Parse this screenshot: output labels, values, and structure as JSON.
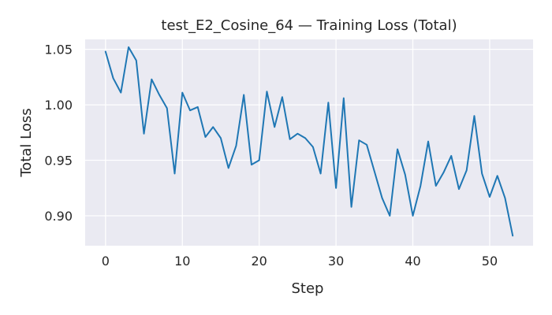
{
  "chart_data": {
    "type": "line",
    "title": "test_E2_Cosine_64 — Training Loss (Total)",
    "xlabel": "Step",
    "ylabel": "Total Loss",
    "xlim": [
      -2.65,
      55.65
    ],
    "ylim": [
      0.873,
      1.059
    ],
    "grid": true,
    "xticks": [
      0,
      10,
      20,
      30,
      40,
      50
    ],
    "yticks": [
      0.9,
      0.95,
      1.0,
      1.05
    ],
    "ytick_labels": [
      "0.90",
      "0.95",
      "1.00",
      "1.05"
    ],
    "colors": {
      "series": "#1f77b4",
      "plot_background": "#eaeaf2",
      "grid": "#ffffff"
    },
    "series": [
      {
        "x": [
          0,
          1,
          2,
          3,
          4,
          5,
          6,
          7,
          8,
          9,
          10,
          11,
          12,
          13,
          14,
          15,
          16,
          17,
          18,
          19,
          20,
          21,
          22,
          23,
          24,
          25,
          26,
          27,
          28,
          29,
          30,
          31,
          32,
          33,
          34,
          35,
          36,
          37,
          38,
          39,
          40,
          41,
          42,
          43,
          44,
          45,
          46,
          47,
          48,
          49,
          50,
          51,
          52,
          53
        ],
        "values": [
          1.048,
          1.024,
          1.011,
          1.052,
          1.04,
          0.974,
          1.023,
          1.009,
          0.997,
          0.938,
          1.011,
          0.995,
          0.998,
          0.971,
          0.98,
          0.97,
          0.943,
          0.963,
          1.009,
          0.946,
          0.95,
          1.012,
          0.98,
          1.007,
          0.969,
          0.974,
          0.97,
          0.962,
          0.938,
          1.002,
          0.925,
          1.006,
          0.908,
          0.968,
          0.964,
          0.94,
          0.916,
          0.9,
          0.96,
          0.937,
          0.9,
          0.927,
          0.967,
          0.927,
          0.939,
          0.954,
          0.924,
          0.941,
          0.99,
          0.938,
          0.917,
          0.936,
          0.916,
          0.882
        ]
      }
    ]
  }
}
